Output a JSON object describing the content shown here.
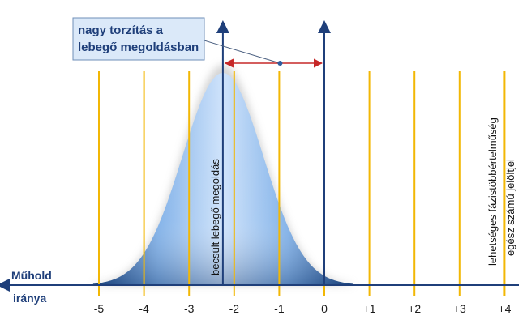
{
  "callout": {
    "line1": "nagy torzítás a",
    "line2": "lebegő megoldásban"
  },
  "axis": {
    "name_line1": "Műhold",
    "name_line2": "iránya"
  },
  "ticks": [
    "-5",
    "-4",
    "-3",
    "-2",
    "-1",
    "0",
    "+1",
    "+2",
    "+3",
    "+4"
  ],
  "estimate": {
    "label": "becsült lebegő megoldás",
    "value": -2.25
  },
  "candidates": {
    "line1": "lehetséges fázistöbbértelműség",
    "line2": "egész számú jelöltjei"
  },
  "true_value": 0,
  "colors": {
    "candidate_line": "#f2b705",
    "axis": "#1f3f7a",
    "bias_arrow": "#c62828",
    "curve_light": "#cfe3fb",
    "curve_dark": "#2d5d9f",
    "callout_bg": "#dbe9f9"
  }
}
